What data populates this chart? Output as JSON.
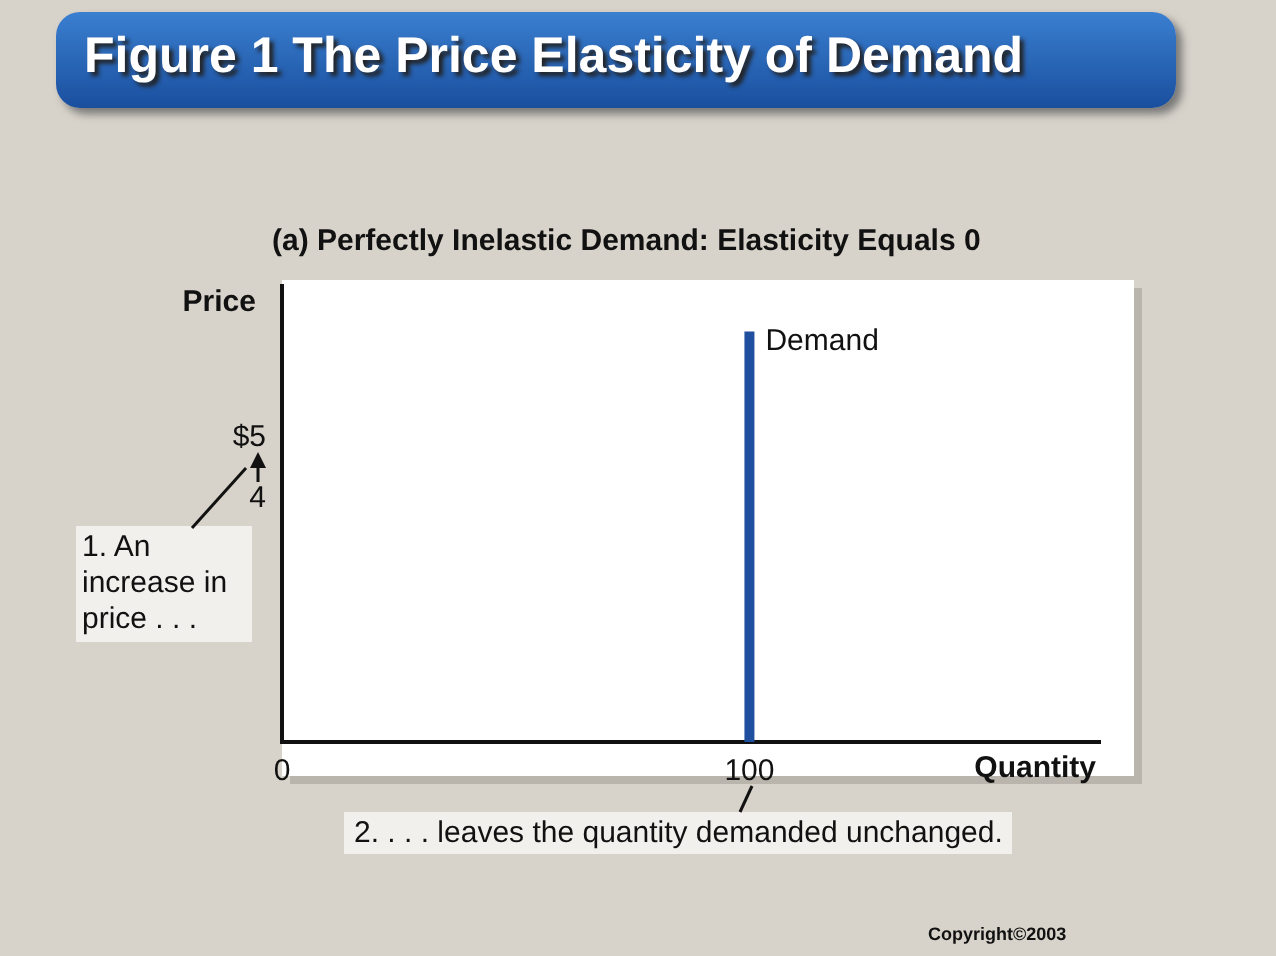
{
  "chart_data": {
    "type": "line",
    "title": "Figure 1 The Price Elasticity of Demand",
    "subtitle": "(a) Perfectly Inelastic Demand: Elasticity Equals 0",
    "xlabel": "Quantity",
    "ylabel": "Price",
    "series": [
      {
        "name": "Demand",
        "color": "#1f4f9e",
        "x": [
          100,
          100
        ],
        "values": [
          0,
          6.75
        ]
      }
    ],
    "xlim": [
      0,
      175
    ],
    "xticks": [
      0,
      100
    ],
    "ylim": [
      0,
      7.5
    ],
    "yticks": [
      {
        "value": 4,
        "label": "4"
      },
      {
        "value": 5,
        "label": "$5"
      }
    ],
    "grid": false,
    "legend": false,
    "marker": "none",
    "line_style": "solid",
    "annotations": [
      "1. An increase in price . . .",
      "2. . . . leaves the quantity demanded unchanged.",
      "Copyright©2003"
    ]
  }
}
